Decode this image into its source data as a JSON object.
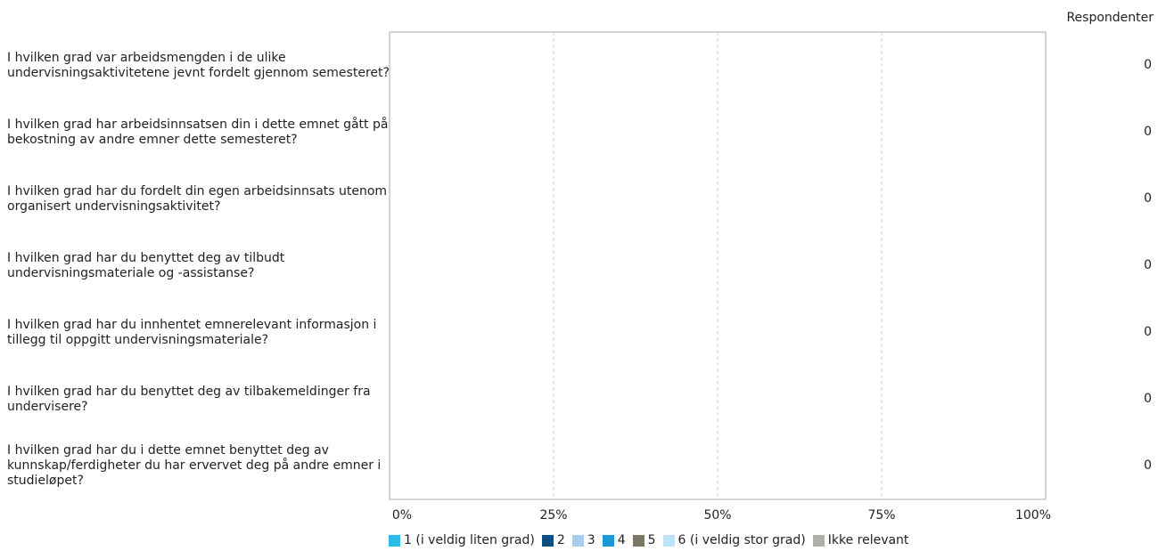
{
  "chart_data": {
    "type": "bar",
    "stacked": true,
    "orientation": "horizontal",
    "categories": [
      "I hvilken grad var arbeidsmengden i de ulike undervisningsaktivitetene jevnt fordelt gjennom semesteret?",
      "I hvilken grad har arbeidsinnsatsen din i dette emnet gått på bekostning av andre emner dette semesteret?",
      "I hvilken grad har du fordelt din egen arbeidsinnsats utenom organisert undervisningsaktivitet?",
      "I hvilken grad har du benyttet deg av tilbudt undervisningsmateriale og -assistanse?",
      "I hvilken grad har du innhentet emnerelevant informasjon i tillegg til oppgitt undervisningsmateriale?",
      "I hvilken grad har du benyttet deg av tilbakemeldinger fra undervisere?",
      "I hvilken grad har du i dette emnet benyttet deg av kunnskap/ferdigheter du har ervervet deg på andre emner i studieløpet?"
    ],
    "series": [
      {
        "name": "1 (i veldig liten grad)",
        "color": "#29bce8",
        "values": [
          0,
          0,
          0,
          0,
          0,
          0,
          0
        ]
      },
      {
        "name": "2",
        "color": "#0d4f80",
        "values": [
          0,
          0,
          0,
          0,
          0,
          0,
          0
        ]
      },
      {
        "name": "3",
        "color": "#a6cdef",
        "values": [
          0,
          0,
          0,
          0,
          0,
          0,
          0
        ]
      },
      {
        "name": "4",
        "color": "#1a9ad6",
        "values": [
          0,
          0,
          0,
          0,
          0,
          0,
          0
        ]
      },
      {
        "name": "5",
        "color": "#7a7763",
        "values": [
          0,
          0,
          0,
          0,
          0,
          0,
          0
        ]
      },
      {
        "name": "6 (i veldig stor grad)",
        "color": "#bde4f6",
        "values": [
          0,
          0,
          0,
          0,
          0,
          0,
          0
        ]
      },
      {
        "name": "Ikke relevant",
        "color": "#b0b0a8",
        "values": [
          0,
          0,
          0,
          0,
          0,
          0,
          0
        ]
      }
    ],
    "respondents_header": "Respondenter",
    "respondents": [
      "0",
      "0",
      "0",
      "0",
      "0",
      "0",
      "0"
    ],
    "xticks": [
      "0%",
      "25%",
      "50%",
      "75%",
      "100%"
    ],
    "xlim": [
      0,
      100
    ],
    "grid": true,
    "legend_position": "bottom"
  }
}
